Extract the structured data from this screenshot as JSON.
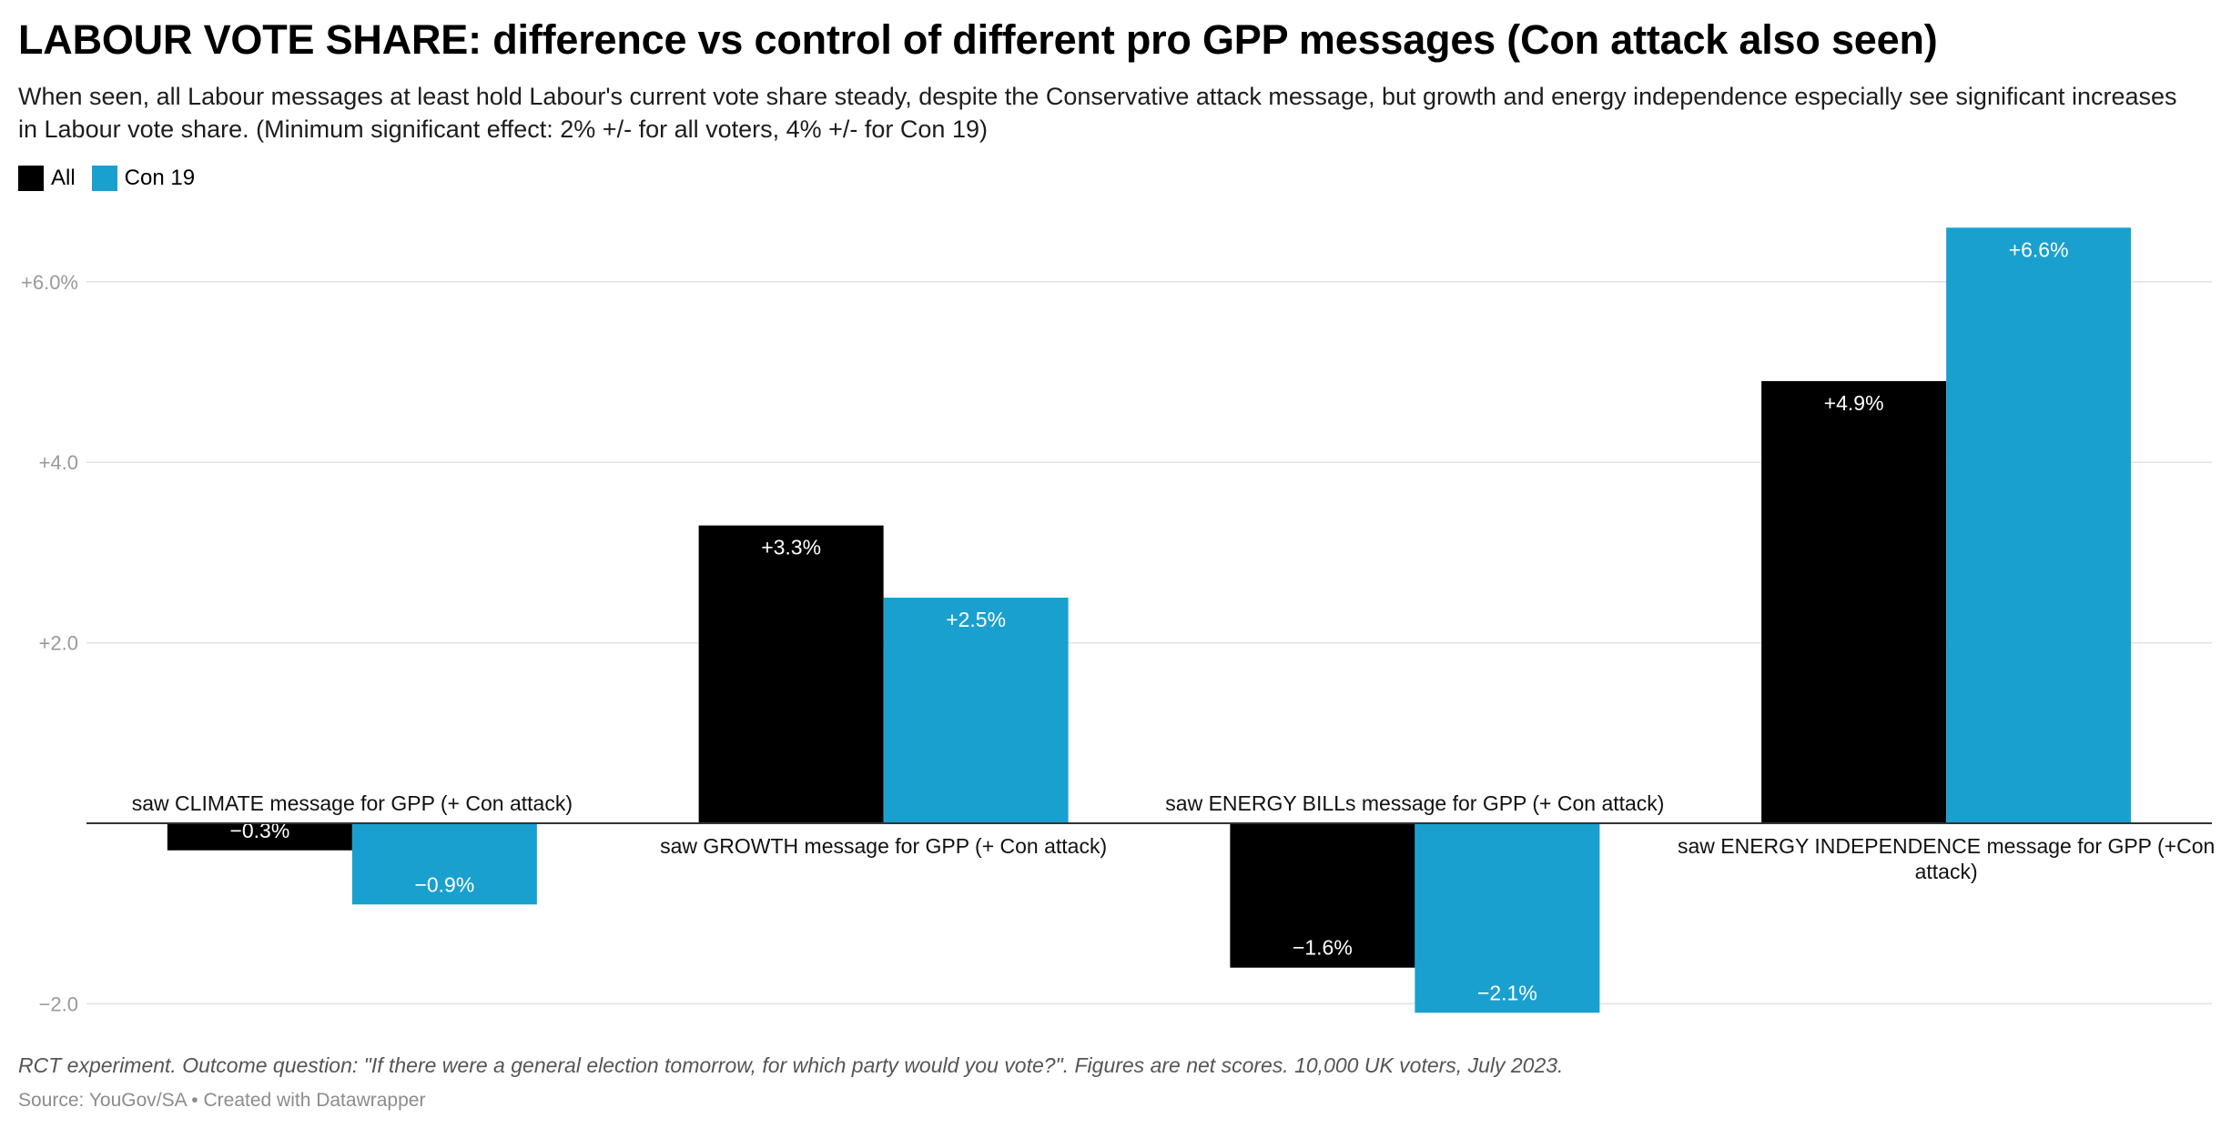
{
  "title": "LABOUR VOTE SHARE: difference vs control of different pro GPP messages (Con attack also seen)",
  "subtitle": "When seen, all Labour messages at least hold Labour's current vote share steady, despite the Conservative attack message, but growth and energy independence especially see significant increases in Labour vote share. (Minimum significant effect: 2% +/- for all voters, 4% +/- for Con 19)",
  "legend": [
    {
      "label": "All",
      "color": "#000000"
    },
    {
      "label": "Con 19",
      "color": "#1aa0cf"
    }
  ],
  "notes": "RCT experiment. Outcome question: \"If there were a general election tomorrow, for which party would you vote?\". Figures are net scores. 10,000 UK voters, July 2023.",
  "source": "Source: YouGov/SA • Created with Datawrapper",
  "chart_data": {
    "type": "bar",
    "categories": [
      "saw CLIMATE message for GPP (+ Con attack)",
      "saw GROWTH message for GPP (+ Con attack)",
      "saw ENERGY BILLs message for GPP (+ Con attack)",
      "saw ENERGY INDEPENDENCE message for GPP (+Con attack)"
    ],
    "series": [
      {
        "name": "All",
        "color": "#000000",
        "values": [
          -0.3,
          3.3,
          -1.6,
          4.9
        ],
        "labels": [
          "−0.3%",
          "+3.3%",
          "−1.6%",
          "+4.9%"
        ]
      },
      {
        "name": "Con 19",
        "color": "#1aa0cf",
        "values": [
          -0.9,
          2.5,
          -2.1,
          6.6
        ],
        "labels": [
          "−0.9%",
          "+2.5%",
          "−2.1%",
          "+6.6%"
        ]
      }
    ],
    "y_ticks": [
      -2,
      2,
      4,
      6
    ],
    "y_tick_labels": [
      "−2.0",
      "+2.0",
      "+4.0",
      "+6.0%"
    ],
    "ylim": [
      -2.3,
      7.2
    ],
    "grid": true,
    "legend_position": "top-left"
  }
}
